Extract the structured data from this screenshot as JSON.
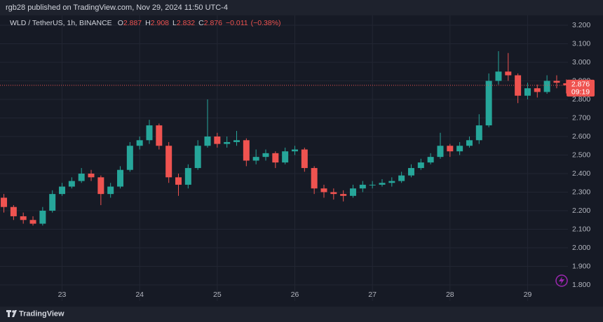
{
  "header": {
    "text": "rgb28 published on TradingView.com, Nov 29, 2024 11:50 UTC-4"
  },
  "footer": {
    "brand": "TradingView"
  },
  "chart_data": {
    "type": "candlestick",
    "title": "WLD / TetherUS, 1h, BINANCE",
    "ohlc_legend": [
      {
        "label": "O",
        "value": 2.887
      },
      {
        "label": "H",
        "value": 2.908
      },
      {
        "label": "L",
        "value": 2.832
      },
      {
        "label": "C",
        "value": 2.876
      }
    ],
    "change": {
      "value": -0.011,
      "label": "−0.011"
    },
    "change_pct": {
      "value": -0.38,
      "label": "(−0.38%)"
    },
    "last_price": 2.876,
    "countdown": "09:19",
    "up_color": "#26a69a",
    "down_color": "#ef5350",
    "grid": true,
    "xlim": [
      22.2,
      29.52
    ],
    "xticks": [
      23,
      24,
      25,
      26,
      27,
      28,
      29
    ],
    "ylim": [
      1.8,
      3.2
    ],
    "yticks": [
      {
        "value": 1.8,
        "label": "1.800"
      },
      {
        "value": 1.9,
        "label": "1.900"
      },
      {
        "value": 2.0,
        "label": "2.000"
      },
      {
        "value": 2.1,
        "label": "2.100"
      },
      {
        "value": 2.2,
        "label": "2.200"
      },
      {
        "value": 2.3,
        "label": "2.300"
      },
      {
        "value": 2.4,
        "label": "2.400"
      },
      {
        "value": 2.5,
        "label": "2.500"
      },
      {
        "value": 2.6,
        "label": "2.600"
      },
      {
        "value": 2.7,
        "label": "2.700"
      },
      {
        "value": 2.8,
        "label": "2.800"
      },
      {
        "value": 2.9,
        "label": "2.900"
      },
      {
        "value": 3.0,
        "label": "3.000"
      },
      {
        "value": 3.1,
        "label": "3.100"
      },
      {
        "value": 3.2,
        "label": "3.200"
      }
    ],
    "x": [
      22.25,
      22.375,
      22.5,
      22.625,
      22.75,
      22.875,
      23,
      23.125,
      23.25,
      23.375,
      23.5,
      23.625,
      23.75,
      23.875,
      24,
      24.125,
      24.25,
      24.375,
      24.5,
      24.625,
      24.75,
      24.875,
      25,
      25.125,
      25.25,
      25.375,
      25.5,
      25.625,
      25.75,
      25.875,
      26,
      26.125,
      26.25,
      26.375,
      26.5,
      26.625,
      26.75,
      26.875,
      27,
      27.125,
      27.25,
      27.375,
      27.5,
      27.625,
      27.75,
      27.875,
      28,
      28.125,
      28.25,
      28.375,
      28.5,
      28.625,
      28.75,
      28.875,
      29,
      29.125,
      29.25,
      29.375,
      29.5
    ],
    "open": [
      2.27,
      2.22,
      2.17,
      2.15,
      2.13,
      2.2,
      2.29,
      2.33,
      2.36,
      2.4,
      2.38,
      2.29,
      2.33,
      2.42,
      2.55,
      2.58,
      2.66,
      2.55,
      2.38,
      2.34,
      2.43,
      2.55,
      2.6,
      2.56,
      2.57,
      2.58,
      2.47,
      2.49,
      2.51,
      2.46,
      2.52,
      2.53,
      2.43,
      2.32,
      2.3,
      2.29,
      2.28,
      2.32,
      2.34,
      2.34,
      2.35,
      2.36,
      2.39,
      2.43,
      2.46,
      2.49,
      2.55,
      2.52,
      2.55,
      2.58,
      2.66,
      2.9,
      2.95,
      2.93,
      2.82,
      2.86,
      2.84,
      2.9,
      2.887
    ],
    "high": [
      2.29,
      2.23,
      2.19,
      2.17,
      2.22,
      2.31,
      2.35,
      2.38,
      2.43,
      2.42,
      2.39,
      2.35,
      2.44,
      2.57,
      2.6,
      2.69,
      2.67,
      2.57,
      2.4,
      2.45,
      2.58,
      2.8,
      2.62,
      2.6,
      2.63,
      2.59,
      2.53,
      2.53,
      2.52,
      2.54,
      2.55,
      2.54,
      2.44,
      2.34,
      2.32,
      2.31,
      2.34,
      2.36,
      2.36,
      2.37,
      2.38,
      2.41,
      2.45,
      2.48,
      2.51,
      2.62,
      2.56,
      2.57,
      2.6,
      2.72,
      2.94,
      3.06,
      3.05,
      2.94,
      2.89,
      2.88,
      2.93,
      2.93,
      2.908
    ],
    "low": [
      2.19,
      2.15,
      2.13,
      2.12,
      2.12,
      2.19,
      2.28,
      2.32,
      2.35,
      2.36,
      2.23,
      2.27,
      2.32,
      2.41,
      2.53,
      2.56,
      2.53,
      2.35,
      2.28,
      2.32,
      2.42,
      2.54,
      2.54,
      2.54,
      2.55,
      2.44,
      2.45,
      2.47,
      2.43,
      2.45,
      2.5,
      2.41,
      2.29,
      2.27,
      2.26,
      2.25,
      2.27,
      2.3,
      2.32,
      2.33,
      2.33,
      2.35,
      2.38,
      2.42,
      2.45,
      2.48,
      2.49,
      2.5,
      2.54,
      2.56,
      2.65,
      2.88,
      2.9,
      2.78,
      2.8,
      2.81,
      2.83,
      2.86,
      2.832
    ],
    "close": [
      2.22,
      2.17,
      2.15,
      2.13,
      2.2,
      2.29,
      2.33,
      2.36,
      2.4,
      2.38,
      2.29,
      2.33,
      2.42,
      2.55,
      2.58,
      2.66,
      2.55,
      2.38,
      2.34,
      2.43,
      2.55,
      2.6,
      2.56,
      2.57,
      2.58,
      2.47,
      2.49,
      2.51,
      2.46,
      2.52,
      2.53,
      2.43,
      2.32,
      2.3,
      2.29,
      2.28,
      2.32,
      2.34,
      2.34,
      2.35,
      2.36,
      2.39,
      2.43,
      2.46,
      2.49,
      2.55,
      2.52,
      2.55,
      2.58,
      2.66,
      2.9,
      2.95,
      2.93,
      2.82,
      2.86,
      2.84,
      2.9,
      2.89,
      2.876
    ]
  }
}
